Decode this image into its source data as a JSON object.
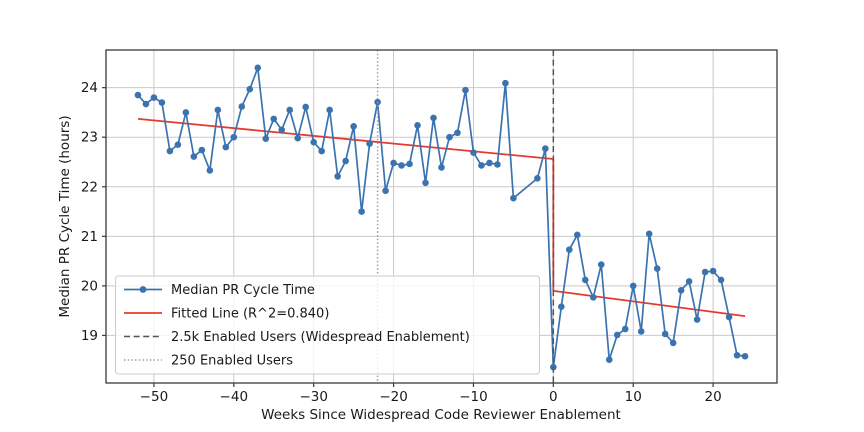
{
  "chart_data": {
    "type": "line",
    "title": "",
    "xlabel": "Weeks Since Widespread Code Reviewer Enablement",
    "ylabel": "Median PR Cycle Time (hours)",
    "xlim": [
      -56,
      28
    ],
    "ylim": [
      18.04,
      24.76
    ],
    "grid": true,
    "legend_position": "lower left",
    "xticks": [
      -50,
      -40,
      -30,
      -20,
      -10,
      0,
      10,
      20
    ],
    "xtick_labels": [
      "−50",
      "−40",
      "−30",
      "−20",
      "−10",
      "0",
      "10",
      "20"
    ],
    "yticks": [
      19,
      20,
      21,
      22,
      23,
      24
    ],
    "ytick_labels": [
      "19",
      "20",
      "21",
      "22",
      "23",
      "24"
    ],
    "series": [
      {
        "name": "Median PR Cycle Time",
        "color": "#3b73af",
        "marker": "circle",
        "points": [
          [
            -52,
            23.85
          ],
          [
            -51,
            23.67
          ],
          [
            -50,
            23.8
          ],
          [
            -49,
            23.7
          ],
          [
            -48,
            22.72
          ],
          [
            -47,
            22.85
          ],
          [
            -46,
            23.5
          ],
          [
            -45,
            22.61
          ],
          [
            -44,
            22.74
          ],
          [
            -43,
            22.33
          ],
          [
            -42,
            23.55
          ],
          [
            -41,
            22.8
          ],
          [
            -40,
            23.0
          ],
          [
            -39,
            23.62
          ],
          [
            -38,
            23.97
          ],
          [
            -37,
            24.4
          ],
          [
            -36,
            22.97
          ],
          [
            -35,
            23.37
          ],
          [
            -34,
            23.15
          ],
          [
            -33,
            23.55
          ],
          [
            -32,
            22.98
          ],
          [
            -31,
            23.61
          ],
          [
            -30,
            22.9
          ],
          [
            -29,
            22.72
          ],
          [
            -28,
            23.55
          ],
          [
            -27,
            22.21
          ],
          [
            -26,
            22.52
          ],
          [
            -25,
            23.22
          ],
          [
            -24,
            21.5
          ],
          [
            -23,
            22.87
          ],
          [
            -22,
            23.71
          ],
          [
            -21,
            21.92
          ],
          [
            -20,
            22.48
          ],
          [
            -19,
            22.43
          ],
          [
            -18,
            22.46
          ],
          [
            -17,
            23.24
          ],
          [
            -16,
            22.08
          ],
          [
            -15,
            23.39
          ],
          [
            -14,
            22.39
          ],
          [
            -13,
            23.0
          ],
          [
            -12,
            23.09
          ],
          [
            -11,
            23.95
          ],
          [
            -10,
            22.69
          ],
          [
            -9,
            22.43
          ],
          [
            -8,
            22.48
          ],
          [
            -7,
            22.45
          ],
          [
            -6,
            24.09
          ],
          [
            -5,
            21.77
          ],
          [
            -2,
            22.17
          ],
          [
            -1,
            22.77
          ],
          [
            0,
            18.36
          ],
          [
            1,
            19.58
          ],
          [
            2,
            20.73
          ],
          [
            3,
            21.03
          ],
          [
            4,
            20.12
          ],
          [
            5,
            19.77
          ],
          [
            6,
            20.43
          ],
          [
            7,
            18.51
          ],
          [
            8,
            19.01
          ],
          [
            9,
            19.13
          ],
          [
            10,
            20.0
          ],
          [
            11,
            19.08
          ],
          [
            12,
            21.05
          ],
          [
            13,
            20.35
          ],
          [
            14,
            19.03
          ],
          [
            15,
            18.85
          ],
          [
            16,
            19.91
          ],
          [
            17,
            20.09
          ],
          [
            18,
            19.32
          ],
          [
            19,
            20.28
          ],
          [
            20,
            20.3
          ],
          [
            21,
            20.12
          ],
          [
            22,
            19.37
          ],
          [
            23,
            18.6
          ],
          [
            24,
            18.58
          ]
        ]
      },
      {
        "name": "Fitted Line (R^2=0.840)",
        "color": "#e8392e",
        "marker": "none",
        "points": [
          [
            -52,
            23.37
          ],
          [
            0,
            22.56
          ],
          [
            0,
            19.9
          ],
          [
            24,
            19.39
          ]
        ]
      }
    ],
    "vlines": [
      {
        "name": "2.5k Enabled Users (Widespread Enablement)",
        "x": 0,
        "style": "dashed",
        "color": "#555555"
      },
      {
        "name": "250 Enabled Users",
        "x": -22,
        "style": "dotted",
        "color": "#999999"
      }
    ],
    "legend": [
      {
        "label": "Median PR Cycle Time",
        "sample": "blue-line-marker"
      },
      {
        "label": "Fitted Line (R^2=0.840)",
        "sample": "red-line"
      },
      {
        "label": "2.5k Enabled Users (Widespread Enablement)",
        "sample": "gray-dashed"
      },
      {
        "label": "250 Enabled Users",
        "sample": "gray-dotted"
      }
    ],
    "colors": {
      "series_blue": "#3b73af",
      "fitted_red": "#e8392e",
      "vline_dashed_gray": "#555555",
      "vline_dotted_gray": "#999999",
      "grid": "#c9c9c9",
      "spine": "#3a3a3a",
      "legend_border": "#cccccc"
    }
  }
}
